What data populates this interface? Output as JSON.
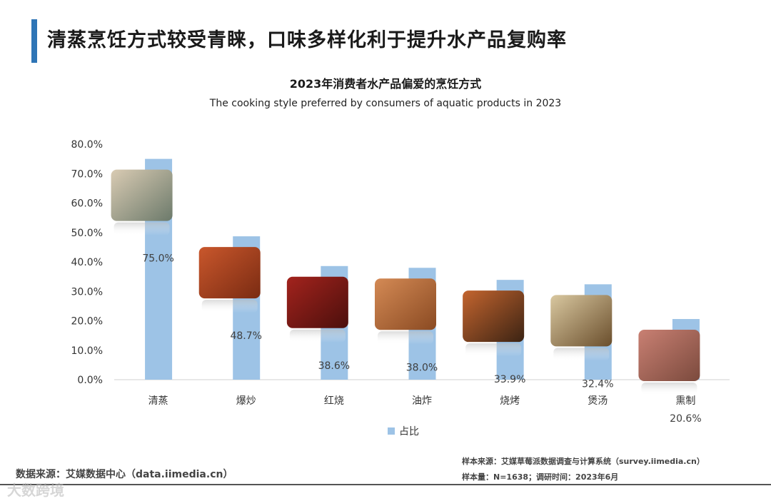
{
  "page_title": "清蒸烹饪方式较受青睐，口味多样化利于提升水产品复购率",
  "chart_data": {
    "type": "bar",
    "title": "2023年消费者水产品偏爱的烹饪方式",
    "subtitle": "The cooking style preferred by consumers of aquatic products in 2023",
    "categories": [
      "清蒸",
      "爆炒",
      "红烧",
      "油炸",
      "烧烤",
      "煲汤",
      "熏制"
    ],
    "series": [
      {
        "name": "占比",
        "values": [
          75.0,
          48.7,
          38.6,
          38.0,
          33.9,
          32.4,
          20.6
        ]
      }
    ],
    "data_labels": [
      "75.0%",
      "48.7%",
      "38.6%",
      "38.0%",
      "33.9%",
      "32.4%",
      "20.6%"
    ],
    "yticks": [
      "0.0%",
      "10.0%",
      "20.0%",
      "30.0%",
      "40.0%",
      "50.0%",
      "60.0%",
      "70.0%",
      "80.0%"
    ],
    "ylim": [
      0,
      80
    ],
    "bar_color": "#9dc3e6",
    "legend_position": "bottom",
    "grid": false,
    "food_images": [
      "seafood-platter",
      "stir-fried-crab",
      "braised-abalone",
      "fried-shrimp",
      "grilled-skewers",
      "seafood-soup",
      "smoked-meat"
    ]
  },
  "footer": {
    "source": "数据来源：艾媒数据中心（data.iimedia.cn）",
    "sample_source": "样本来源：艾媒草莓派数据调查与计算系统（survey.iimedia.cn）",
    "sample_size": "样本量：N=1638；调研时间：2023年6月",
    "watermark": "大数跨境"
  }
}
